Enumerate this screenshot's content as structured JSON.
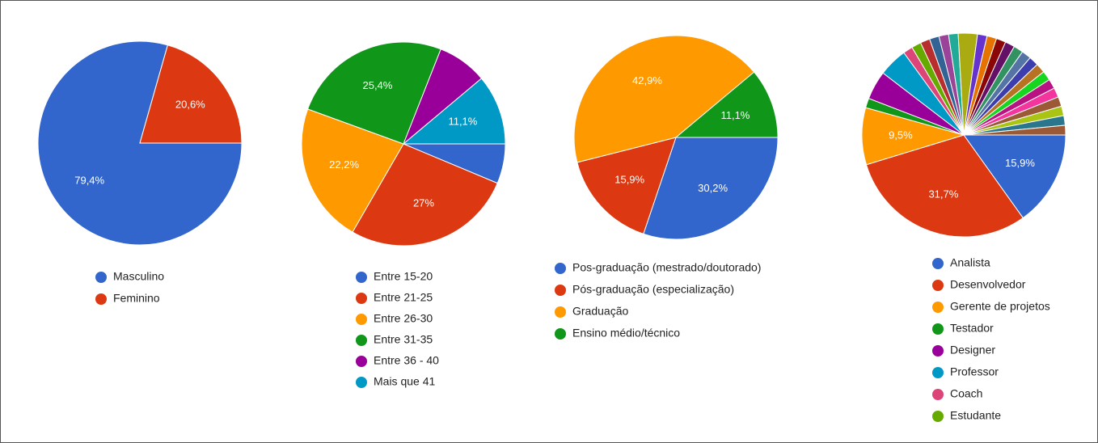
{
  "chart_data": [
    {
      "type": "pie",
      "categories": [
        "Masculino",
        "Feminino"
      ],
      "values": [
        79.4,
        20.6
      ],
      "value_labels": [
        "79,4%",
        "20,6%"
      ],
      "colors": [
        "#3366cc",
        "#dc3912"
      ]
    },
    {
      "type": "pie",
      "categories": [
        "Entre 15-20",
        "Entre 21-25",
        "Entre 26-30",
        "Entre 31-35",
        "Entre 36 - 40",
        "Mais que 41"
      ],
      "values": [
        6.3,
        27,
        22.2,
        25.4,
        7.9,
        11.1
      ],
      "value_labels": [
        null,
        "27%",
        "22,2%",
        "25,4%",
        null,
        "11,1%"
      ],
      "colors": [
        "#3366cc",
        "#dc3912",
        "#ff9900",
        "#109618",
        "#990099",
        "#0099c6"
      ]
    },
    {
      "type": "pie",
      "categories": [
        "Pos-graduação (mestrado/doutorado)",
        "Pós-graduação (especialização)",
        "Graduação",
        "Ensino médio/técnico"
      ],
      "values": [
        30.2,
        15.9,
        42.9,
        11.1
      ],
      "value_labels": [
        "30,2%",
        "15,9%",
        "42,9%",
        "11,1%"
      ],
      "colors": [
        "#3366cc",
        "#dc3912",
        "#ff9900",
        "#109618"
      ]
    },
    {
      "type": "pie",
      "categories": [
        "Analista",
        "Desenvolvedor",
        "Gerente de projetos",
        "Testador",
        "Designer",
        "Professor",
        "Coach",
        "Estudante",
        null,
        null,
        null,
        null,
        null,
        null,
        null,
        null,
        null,
        null,
        null,
        null,
        null,
        null,
        null,
        null,
        null,
        null,
        null,
        null
      ],
      "values": [
        15.9,
        31.7,
        9.5,
        1.6,
        4.8,
        4.8,
        1.6,
        1.6,
        1.6,
        1.6,
        1.6,
        1.6,
        3.2,
        1.6,
        1.6,
        1.6,
        1.6,
        1.6,
        1.6,
        1.6,
        1.6,
        1.6,
        1.6,
        1.6,
        1.6,
        1.6,
        1.6,
        1.6
      ],
      "value_labels": [
        "15,9%",
        "31,7%",
        "9,5%",
        null,
        null,
        null,
        null,
        null,
        null,
        null,
        null,
        null,
        null,
        null,
        null,
        null,
        null,
        null,
        null,
        null,
        null,
        null,
        null,
        null,
        null,
        null,
        null,
        null
      ],
      "colors": [
        "#3366cc",
        "#dc3912",
        "#ff9900",
        "#109618",
        "#990099",
        "#0099c6",
        "#dd4477",
        "#66aa00",
        "#b82e2e",
        "#316395",
        "#994499",
        "#22aa99",
        "#aaaa11",
        "#6633cc",
        "#e67300",
        "#8b0707",
        "#651067",
        "#329262",
        "#5574a6",
        "#3b3eac",
        "#b77322",
        "#16d620",
        "#b91383",
        "#f4359e",
        "#9c5935",
        "#a9c413",
        "#2a778d",
        "#9c5935"
      ]
    }
  ]
}
